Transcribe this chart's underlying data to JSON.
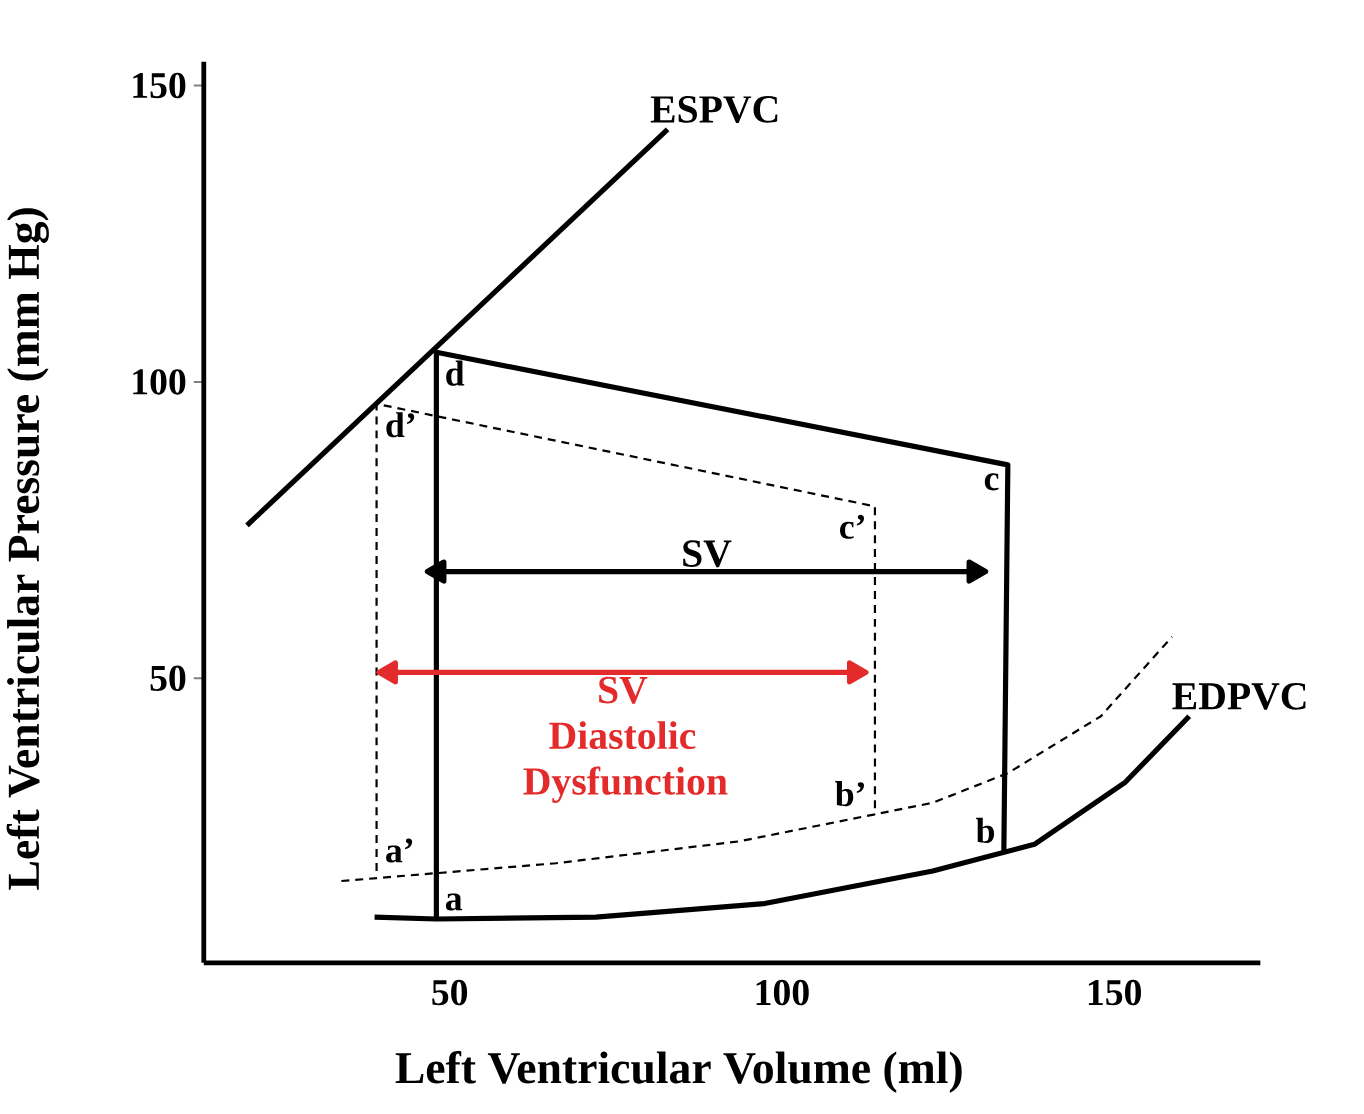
{
  "chart_data": {
    "type": "line",
    "xlabel": "Left Ventricular Volume (ml)",
    "ylabel": "Left Ventricular Pressure (mm Hg)",
    "xlim": [
      13,
      172
    ],
    "ylim": [
      2,
      154
    ],
    "xticks": [
      50,
      100,
      150
    ],
    "yticks": [
      50,
      100,
      150
    ],
    "grid": false,
    "marker": "none",
    "series": [
      {
        "name": "ESPVC",
        "color": "#000000",
        "x": [
          19.5,
          82.8
        ],
        "values": [
          75.8,
          142.6
        ]
      },
      {
        "color": "#000000",
        "x": [
          48,
          48,
          134,
          133.4
        ],
        "values": [
          9.4,
          105,
          86,
          20.8
        ]
      },
      {
        "color": "#000000",
        "line_style": "dashed",
        "x": [
          39,
          39,
          114,
          114
        ],
        "values": [
          17.5,
          96.3,
          79,
          27
        ]
      },
      {
        "name": "EDPVC",
        "color": "#000000",
        "x": [
          38.7,
          48,
          72,
          97.4,
          122.7,
          138,
          151.7,
          161.3
        ],
        "values": [
          9.7,
          9.4,
          9.7,
          12,
          17.5,
          22,
          32.5,
          43.6
        ]
      },
      {
        "color": "#000000",
        "line_style": "dashed",
        "x": [
          33.7,
          66,
          93.6,
          122.7,
          134,
          148,
          158.7
        ],
        "values": [
          15.8,
          18.8,
          22.5,
          29,
          34,
          43.6,
          57
        ]
      },
      {
        "name": "SV",
        "color": "#000000",
        "marker": "triangle",
        "x": [
          48.3,
          129
        ],
        "values": [
          68,
          68
        ]
      },
      {
        "name": "SV Diastolic Dysfunction",
        "color": "#e32b2b",
        "marker": "triangle",
        "x": [
          41,
          111
        ],
        "values": [
          51,
          51
        ]
      }
    ],
    "annotations": [
      {
        "text": "d",
        "x": 48,
        "y": 105
      },
      {
        "text": "d’",
        "x": 39,
        "y": 96.3
      },
      {
        "text": "c",
        "x": 134,
        "y": 86
      },
      {
        "text": "c’",
        "x": 114,
        "y": 79
      },
      {
        "text": "b",
        "x": 133.4,
        "y": 20.8
      },
      {
        "text": "b’",
        "x": 114,
        "y": 27
      },
      {
        "text": "a",
        "x": 48,
        "y": 9.4
      },
      {
        "text": "a’",
        "x": 39,
        "y": 17.5
      }
    ]
  }
}
